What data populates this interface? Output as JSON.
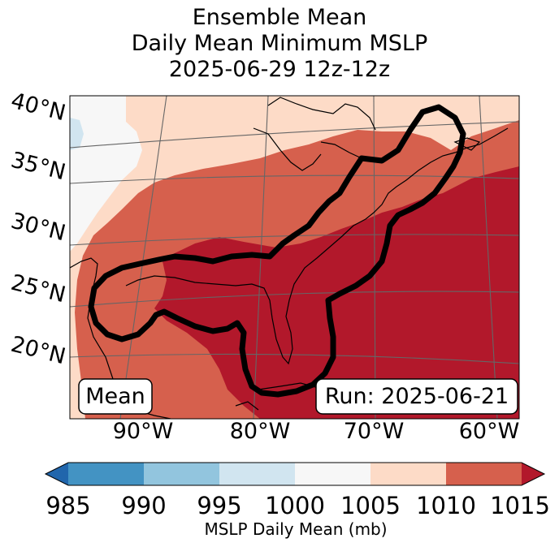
{
  "title": {
    "line1": "Ensemble Mean",
    "line2": "Daily Mean Minimum MSLP",
    "line3": "2025-06-29 12z-12z"
  },
  "map": {
    "lat_labels": [
      "40°N",
      "35°N",
      "30°N",
      "25°N",
      "20°N"
    ],
    "lon_labels": [
      "90°W",
      "80°W",
      "70°W",
      "60°W"
    ],
    "mean_box": "Mean",
    "run_box": "Run: 2025-06-21"
  },
  "colorbar": {
    "title": "MSLP Daily Mean (mb)",
    "ticks": [
      "985",
      "990",
      "995",
      "1000",
      "1005",
      "1010",
      "1015"
    ],
    "colors": {
      "under": "#2166ac",
      "b985_990": "#4393c3",
      "b990_995": "#92c5de",
      "b995_1000": "#d1e5f0",
      "b1000_1005": "#f7f7f7",
      "b1005_1010": "#fddbc7",
      "b1010_1015": "#d6604d",
      "over": "#b2182b"
    }
  }
}
